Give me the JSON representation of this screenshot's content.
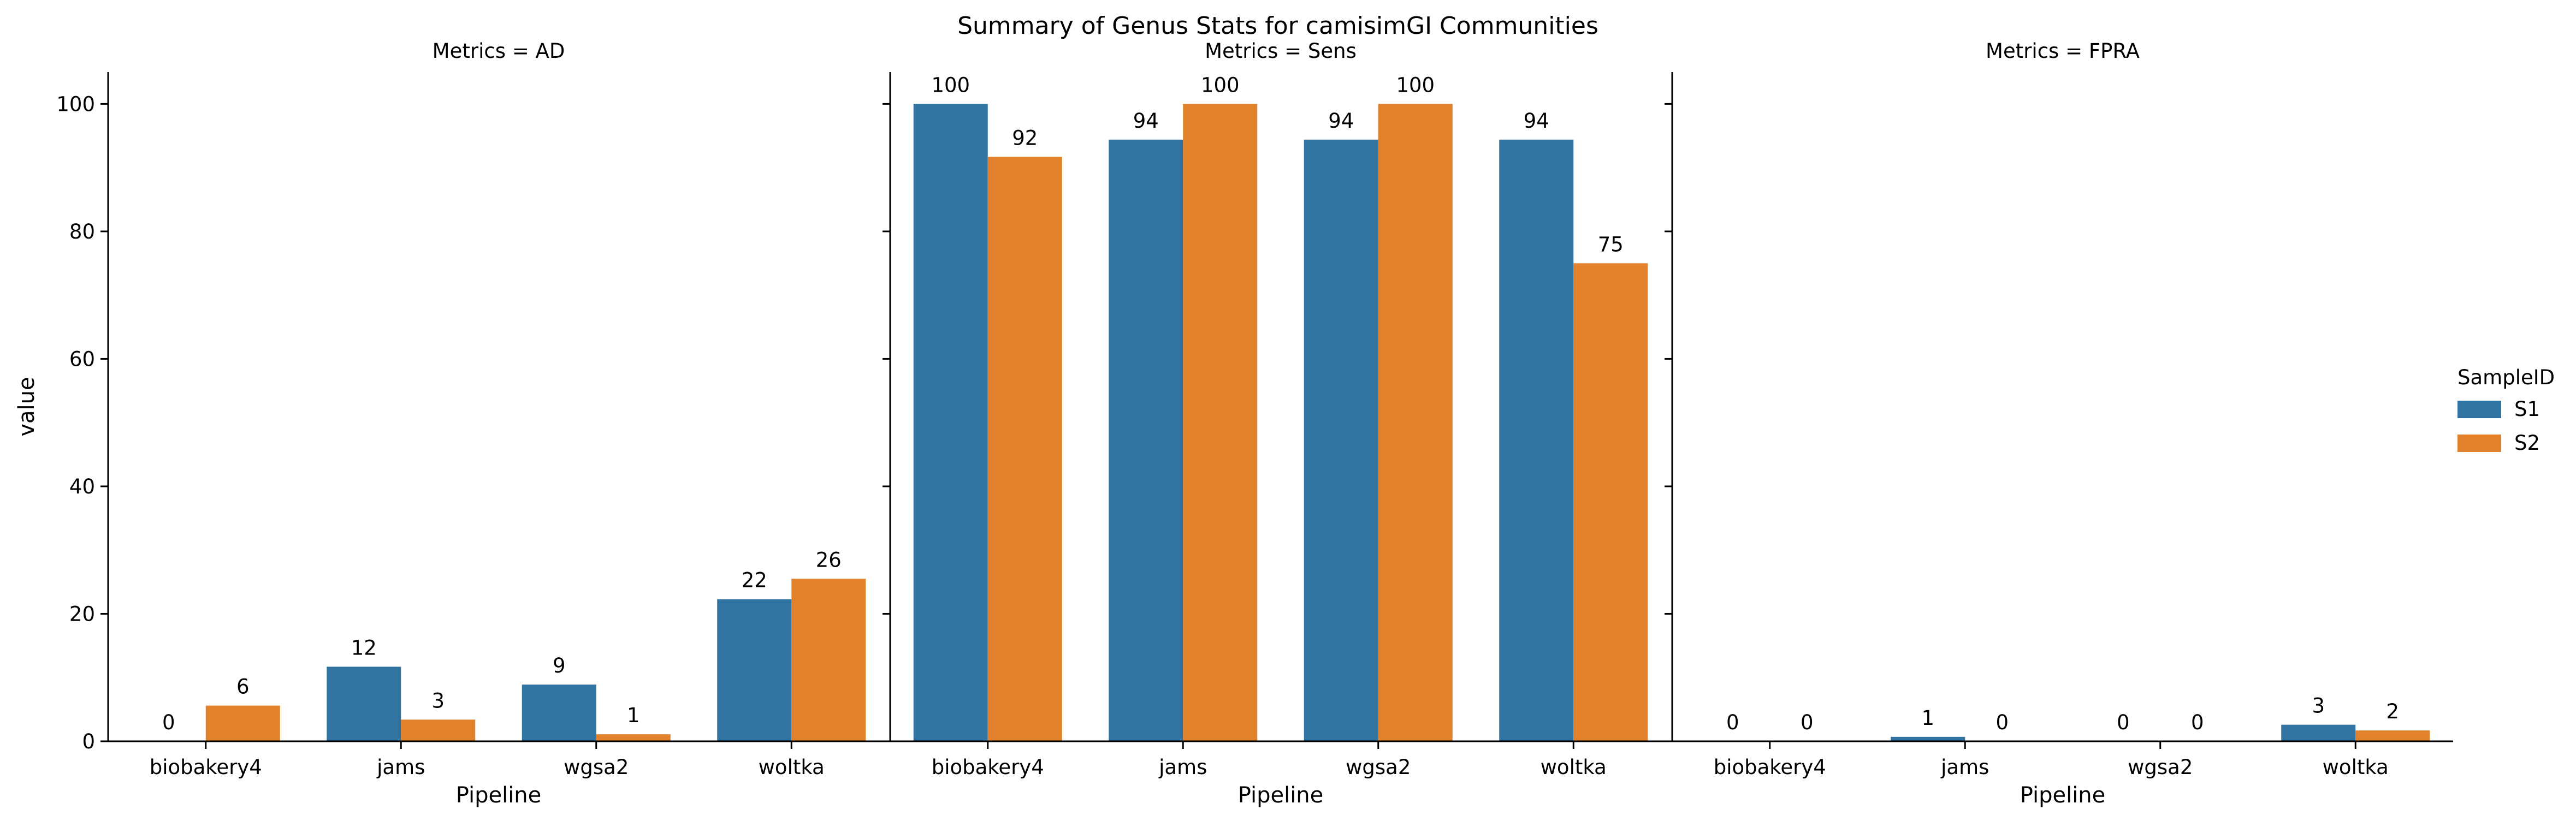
{
  "chart_data": {
    "type": "bar",
    "title": "Summary of Genus Stats for camisimGI Communities",
    "xlabel": "Pipeline",
    "ylabel": "value",
    "ylim": [
      0,
      105
    ],
    "yticks": [
      0,
      20,
      40,
      60,
      80,
      100
    ],
    "grid": false,
    "categories": [
      "biobakery4",
      "jams",
      "wgsa2",
      "woltka"
    ],
    "legend": {
      "title": "SampleID",
      "placement": "right",
      "entries": [
        {
          "name": "S1",
          "color": "#3274a1"
        },
        {
          "name": "S2",
          "color": "#e1812c"
        }
      ]
    },
    "facets": [
      {
        "title": "Metrics = AD",
        "series": [
          {
            "name": "S1",
            "values": [
              0,
              11.7,
              8.9,
              22.3
            ],
            "labels": [
              "0",
              "12",
              "9",
              "22"
            ]
          },
          {
            "name": "S2",
            "values": [
              5.6,
              3.4,
              1.1,
              25.5
            ],
            "labels": [
              "6",
              "3",
              "1",
              "26"
            ]
          }
        ]
      },
      {
        "title": "Metrics = Sens",
        "series": [
          {
            "name": "S1",
            "values": [
              100,
              94.4,
              94.4,
              94.4
            ],
            "labels": [
              "100",
              "94",
              "94",
              "94"
            ]
          },
          {
            "name": "S2",
            "values": [
              91.7,
              100,
              100,
              75
            ],
            "labels": [
              "92",
              "100",
              "100",
              "75"
            ]
          }
        ]
      },
      {
        "title": "Metrics = FPRA",
        "series": [
          {
            "name": "S1",
            "values": [
              0,
              0.7,
              0,
              2.6
            ],
            "labels": [
              "0",
              "1",
              "0",
              "3"
            ]
          },
          {
            "name": "S2",
            "values": [
              0,
              0,
              0,
              1.7
            ],
            "labels": [
              "0",
              "0",
              "0",
              "2"
            ]
          }
        ]
      }
    ]
  }
}
